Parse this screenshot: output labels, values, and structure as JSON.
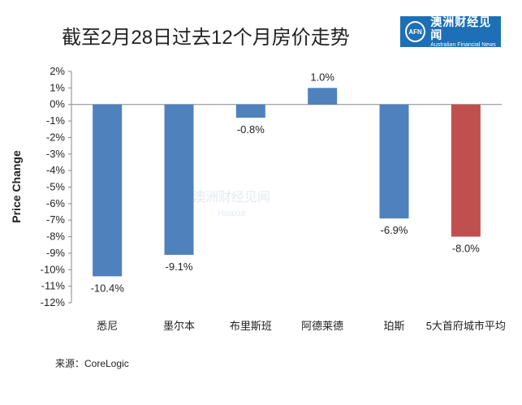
{
  "title": "截至2月28日过去12个月房价走势",
  "logo": {
    "mark": "AFN",
    "name_cn": "澳洲财经见闻",
    "name_en": "Australian Financial News"
  },
  "watermark": {
    "cn": "澳洲财经见闻",
    "en": "Huaxia"
  },
  "source": "来源：CoreLogic",
  "colors": {
    "bar": "#4f81bd",
    "highlight": "#c0504d",
    "axis": "#888888"
  },
  "chart_data": {
    "type": "bar",
    "title": "",
    "ylabel": "Price Change",
    "xlabel": "",
    "ylim": [
      -12,
      2
    ],
    "yticks": [
      "2%",
      "1%",
      "0%",
      "-1%",
      "-2%",
      "-3%",
      "-4%",
      "-5%",
      "-6%",
      "-7%",
      "-8%",
      "-9%",
      "-10%",
      "-11%",
      "-12%"
    ],
    "categories": [
      "悉尼",
      "墨尔本",
      "布里斯班",
      "阿德莱德",
      "珀斯",
      "5大首府城市平均"
    ],
    "values": [
      -10.4,
      -9.1,
      -0.8,
      1.0,
      -6.9,
      -8.0
    ],
    "labels": [
      "-10.4%",
      "-9.1%",
      "-0.8%",
      "1.0%",
      "-6.9%",
      "-8.0%"
    ],
    "highlight_index": 5,
    "grid": false
  }
}
